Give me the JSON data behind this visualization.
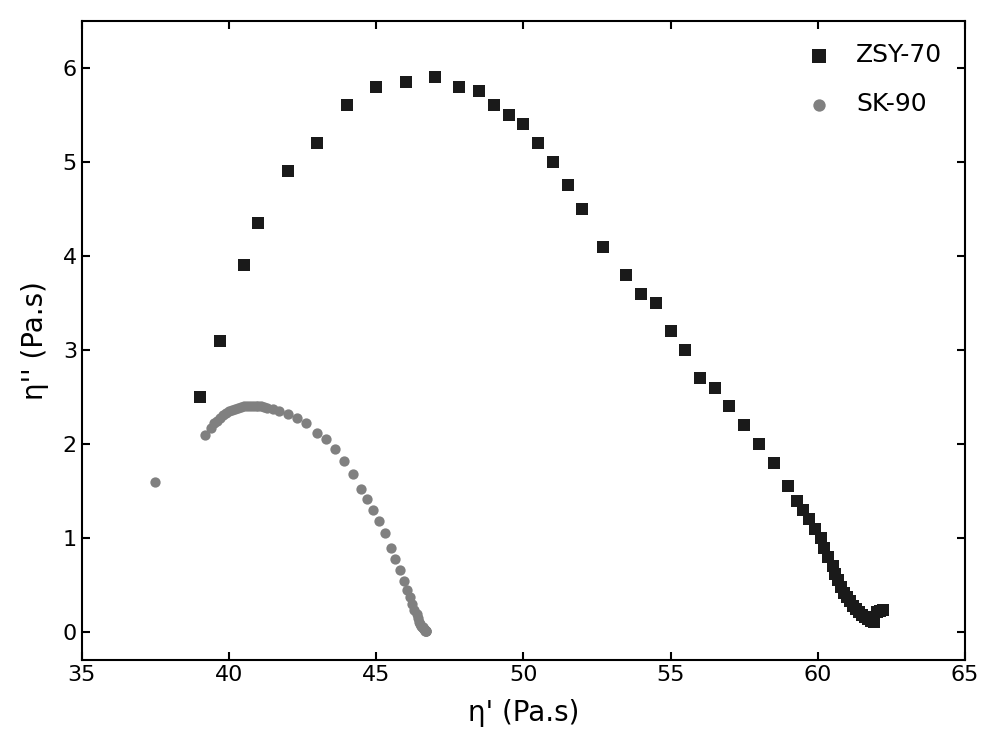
{
  "zsy70_x": [
    39.0,
    39.7,
    40.5,
    41.0,
    42.0,
    43.0,
    44.0,
    45.0,
    46.0,
    47.0,
    47.8,
    48.5,
    49.0,
    49.5,
    50.0,
    50.5,
    51.0,
    51.5,
    52.0,
    52.7,
    53.5,
    54.0,
    54.5,
    55.0,
    55.5,
    56.0,
    56.5,
    57.0,
    57.5,
    58.0,
    58.5,
    59.0,
    59.3,
    59.5,
    59.7,
    59.9,
    60.1,
    60.2,
    60.35,
    60.5,
    60.6,
    60.7,
    60.8,
    60.9,
    61.0,
    61.1,
    61.2,
    61.3,
    61.4,
    61.5,
    61.6,
    61.7,
    61.8,
    61.9,
    62.0,
    62.1,
    62.2
  ],
  "zsy70_y": [
    2.5,
    3.1,
    3.9,
    4.35,
    4.9,
    5.2,
    5.6,
    5.8,
    5.85,
    5.9,
    5.8,
    5.75,
    5.6,
    5.5,
    5.4,
    5.2,
    5.0,
    4.75,
    4.5,
    4.1,
    3.8,
    3.6,
    3.5,
    3.2,
    3.0,
    2.7,
    2.6,
    2.4,
    2.2,
    2.0,
    1.8,
    1.55,
    1.4,
    1.3,
    1.2,
    1.1,
    1.0,
    0.9,
    0.8,
    0.7,
    0.62,
    0.55,
    0.48,
    0.42,
    0.37,
    0.33,
    0.28,
    0.25,
    0.22,
    0.18,
    0.16,
    0.14,
    0.12,
    0.11,
    0.22,
    0.23,
    0.24
  ],
  "sk90_x": [
    37.5,
    39.2,
    39.4,
    39.5,
    39.6,
    39.7,
    39.8,
    39.9,
    40.0,
    40.1,
    40.2,
    40.3,
    40.4,
    40.5,
    40.6,
    40.7,
    40.8,
    40.9,
    41.0,
    41.1,
    41.2,
    41.3,
    41.5,
    41.7,
    42.0,
    42.3,
    42.6,
    43.0,
    43.3,
    43.6,
    43.9,
    44.2,
    44.5,
    44.7,
    44.9,
    45.1,
    45.3,
    45.5,
    45.65,
    45.8,
    45.95,
    46.05,
    46.15,
    46.22,
    46.3,
    46.37,
    46.42,
    46.47,
    46.5,
    46.52,
    46.55,
    46.58,
    46.6,
    46.62,
    46.64,
    46.65,
    46.66,
    46.67,
    46.68,
    46.69,
    46.7
  ],
  "sk90_y": [
    1.6,
    2.1,
    2.17,
    2.22,
    2.25,
    2.28,
    2.31,
    2.33,
    2.35,
    2.36,
    2.37,
    2.38,
    2.39,
    2.4,
    2.41,
    2.41,
    2.41,
    2.41,
    2.41,
    2.4,
    2.39,
    2.38,
    2.37,
    2.35,
    2.32,
    2.28,
    2.22,
    2.12,
    2.05,
    1.95,
    1.82,
    1.68,
    1.52,
    1.42,
    1.3,
    1.18,
    1.05,
    0.9,
    0.78,
    0.66,
    0.54,
    0.45,
    0.37,
    0.3,
    0.24,
    0.19,
    0.15,
    0.11,
    0.09,
    0.07,
    0.06,
    0.05,
    0.04,
    0.035,
    0.03,
    0.025,
    0.02,
    0.018,
    0.015,
    0.01,
    0.008
  ],
  "zsy70_color": "#1a1a1a",
  "sk90_color": "#808080",
  "zsy70_label": "ZSY-70",
  "sk90_label": "SK-90",
  "xlabel": "η' (Pa.s)",
  "ylabel": "η'' (Pa.s)",
  "xlim": [
    35,
    65
  ],
  "ylim": [
    -0.3,
    6.5
  ],
  "xticks": [
    35,
    40,
    45,
    50,
    55,
    60,
    65
  ],
  "yticks": [
    0,
    1,
    2,
    3,
    4,
    5,
    6
  ],
  "marker_size_square": 72,
  "marker_size_circle": 55,
  "legend_fontsize": 18,
  "axis_label_fontsize": 20,
  "tick_fontsize": 16
}
